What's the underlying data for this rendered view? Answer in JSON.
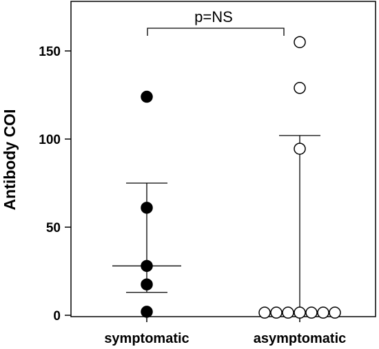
{
  "chart_data": {
    "type": "scatter",
    "title": "",
    "xlabel": "",
    "ylabel": "Antibody COI",
    "ylim": [
      0,
      170
    ],
    "yticks": [
      0,
      50,
      100,
      150
    ],
    "categories": [
      "symptomatic",
      "asymptomatic"
    ],
    "grid": false,
    "series": [
      {
        "category": "symptomatic",
        "marker": "filled-circle",
        "values": [
          124,
          61,
          28,
          17.5,
          2
        ],
        "median": 28,
        "error_low": 13,
        "error_high": 75
      },
      {
        "category": "asymptomatic",
        "marker": "open-circle",
        "values": [
          155,
          129,
          94.5,
          1.5,
          1.5,
          1.5,
          1.5,
          1.5,
          1.5,
          1.5
        ],
        "median": 1.5,
        "error_low": 1.5,
        "error_high": 102
      }
    ],
    "annotation": {
      "text": "p=NS",
      "between": [
        "symptomatic",
        "asymptomatic"
      ]
    },
    "colors": {
      "filled_marker": "#000000",
      "open_marker_fill": "#ffffff",
      "axis": "#000000"
    }
  }
}
